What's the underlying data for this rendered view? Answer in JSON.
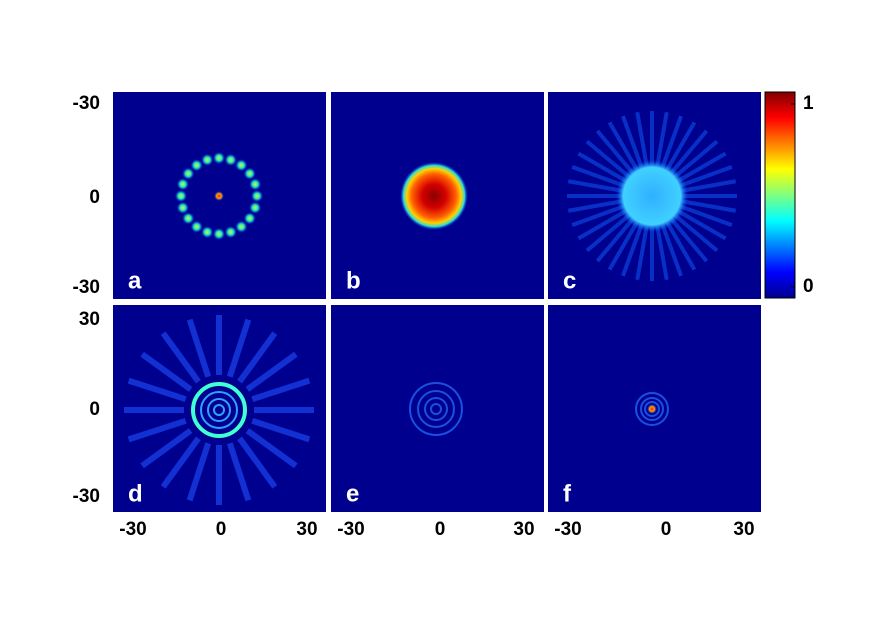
{
  "panels": [
    {
      "label": "a"
    },
    {
      "label": "b"
    },
    {
      "label": "c"
    },
    {
      "label": "d"
    },
    {
      "label": "e"
    },
    {
      "label": "f"
    }
  ],
  "row_y_ticks": [
    [
      -30,
      0,
      -30
    ],
    [
      30,
      0,
      -30
    ]
  ],
  "column_x_ticks": [
    [
      -30,
      0,
      30
    ],
    [
      -30,
      0,
      30
    ],
    [
      -30,
      0,
      30
    ]
  ],
  "colorbar": {
    "ticks": [
      0,
      1
    ]
  }
}
